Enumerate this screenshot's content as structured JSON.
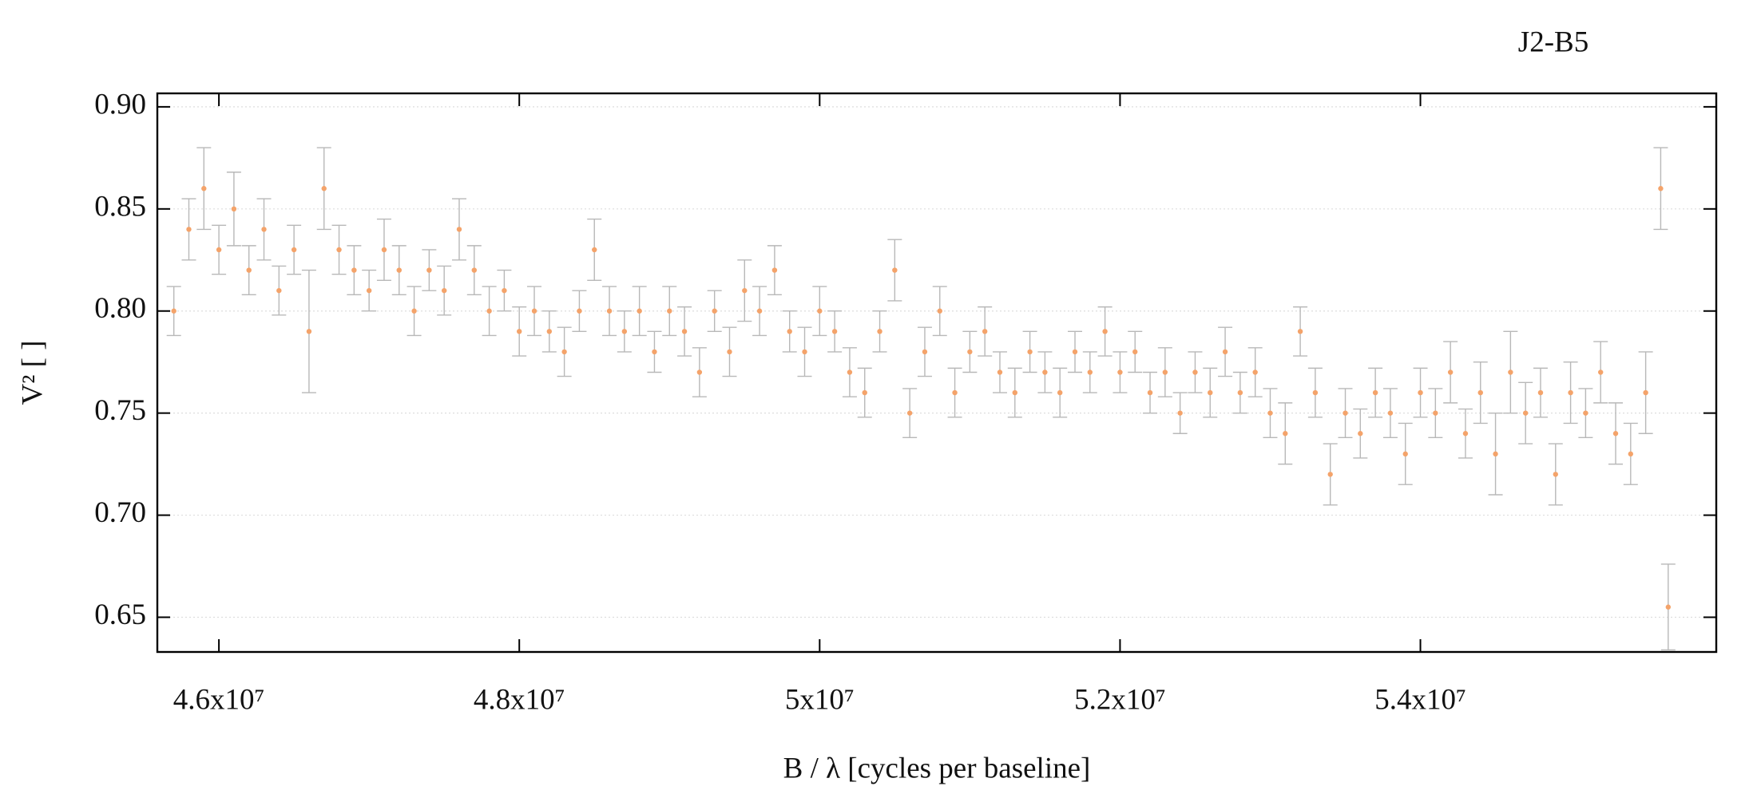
{
  "chart_data": {
    "type": "scatter",
    "title": "J2-B5",
    "xlabel": "B / λ [cycles per baseline]",
    "ylabel": "V² [ ]",
    "x": [
      45700000,
      45800000,
      45900000,
      46000000,
      46100000,
      46200000,
      46300000,
      46400000,
      46500000,
      46600000,
      46700000,
      46800000,
      46900000,
      47000000,
      47100000,
      47200000,
      47300000,
      47400000,
      47500000,
      47600000,
      47700000,
      47800000,
      47900000,
      48000000,
      48100000,
      48200000,
      48300000,
      48400000,
      48500000,
      48600000,
      48700000,
      48800000,
      48900000,
      49000000,
      49100000,
      49200000,
      49300000,
      49400000,
      49500000,
      49600000,
      49700000,
      49800000,
      49900000,
      50000000,
      50100000,
      50200000,
      50300000,
      50400000,
      50500000,
      50600000,
      50700000,
      50800000,
      50900000,
      51000000,
      51100000,
      51200000,
      51300000,
      51400000,
      51500000,
      51600000,
      51700000,
      51800000,
      51900000,
      52000000,
      52100000,
      52200000,
      52300000,
      52400000,
      52500000,
      52600000,
      52700000,
      52800000,
      52900000,
      53000000,
      53100000,
      53200000,
      53300000,
      53400000,
      53500000,
      53600000,
      53700000,
      53800000,
      53900000,
      54000000,
      54100000,
      54200000,
      54300000,
      54400000,
      54500000,
      54600000,
      54700000,
      54800000,
      54900000,
      55000000,
      55100000,
      55200000,
      55300000,
      55400000,
      55500000,
      55600000,
      55650000
    ],
    "values": [
      0.8,
      0.84,
      0.86,
      0.83,
      0.85,
      0.82,
      0.84,
      0.81,
      0.83,
      0.79,
      0.86,
      0.83,
      0.82,
      0.81,
      0.83,
      0.82,
      0.8,
      0.82,
      0.81,
      0.84,
      0.82,
      0.8,
      0.81,
      0.79,
      0.8,
      0.79,
      0.78,
      0.8,
      0.83,
      0.8,
      0.79,
      0.8,
      0.78,
      0.8,
      0.79,
      0.77,
      0.8,
      0.78,
      0.81,
      0.8,
      0.82,
      0.79,
      0.78,
      0.8,
      0.79,
      0.77,
      0.76,
      0.79,
      0.82,
      0.75,
      0.78,
      0.8,
      0.76,
      0.78,
      0.79,
      0.77,
      0.76,
      0.78,
      0.77,
      0.76,
      0.78,
      0.77,
      0.79,
      0.77,
      0.78,
      0.76,
      0.77,
      0.75,
      0.77,
      0.76,
      0.78,
      0.76,
      0.77,
      0.75,
      0.74,
      0.79,
      0.76,
      0.72,
      0.75,
      0.74,
      0.76,
      0.75,
      0.73,
      0.76,
      0.75,
      0.77,
      0.74,
      0.76,
      0.73,
      0.77,
      0.75,
      0.76,
      0.72,
      0.76,
      0.75,
      0.77,
      0.74,
      0.73,
      0.76,
      0.86,
      0.655
    ],
    "errors": [
      0.012,
      0.015,
      0.02,
      0.012,
      0.018,
      0.012,
      0.015,
      0.012,
      0.012,
      0.03,
      0.02,
      0.012,
      0.012,
      0.01,
      0.015,
      0.012,
      0.012,
      0.01,
      0.012,
      0.015,
      0.012,
      0.012,
      0.01,
      0.012,
      0.012,
      0.01,
      0.012,
      0.01,
      0.015,
      0.012,
      0.01,
      0.012,
      0.01,
      0.012,
      0.012,
      0.012,
      0.01,
      0.012,
      0.015,
      0.012,
      0.012,
      0.01,
      0.012,
      0.012,
      0.01,
      0.012,
      0.012,
      0.01,
      0.015,
      0.012,
      0.012,
      0.012,
      0.012,
      0.01,
      0.012,
      0.01,
      0.012,
      0.01,
      0.01,
      0.012,
      0.01,
      0.01,
      0.012,
      0.01,
      0.01,
      0.01,
      0.012,
      0.01,
      0.01,
      0.012,
      0.012,
      0.01,
      0.012,
      0.012,
      0.015,
      0.012,
      0.012,
      0.015,
      0.012,
      0.012,
      0.012,
      0.012,
      0.015,
      0.012,
      0.012,
      0.015,
      0.012,
      0.015,
      0.02,
      0.02,
      0.015,
      0.012,
      0.015,
      0.015,
      0.012,
      0.015,
      0.015,
      0.015,
      0.02,
      0.02,
      0.021
    ],
    "color": "#f4a36a",
    "error_color": "#b8b8b8",
    "xlim": [
      45590000,
      55970000
    ],
    "ylim": [
      0.633,
      0.9066
    ],
    "xticks": [
      {
        "value": 46000000,
        "label": "4.6x10⁷"
      },
      {
        "value": 48000000,
        "label": "4.8x10⁷"
      },
      {
        "value": 50000000,
        "label": "5x10⁷"
      },
      {
        "value": 52000000,
        "label": "5.2x10⁷"
      },
      {
        "value": 54000000,
        "label": "5.4x10⁷"
      }
    ],
    "yticks": [
      {
        "value": 0.65,
        "label": "0.65"
      },
      {
        "value": 0.7,
        "label": "0.70"
      },
      {
        "value": 0.75,
        "label": "0.75"
      },
      {
        "value": 0.8,
        "label": "0.80"
      },
      {
        "value": 0.85,
        "label": "0.85"
      },
      {
        "value": 0.9,
        "label": "0.90"
      }
    ],
    "grid": true
  }
}
